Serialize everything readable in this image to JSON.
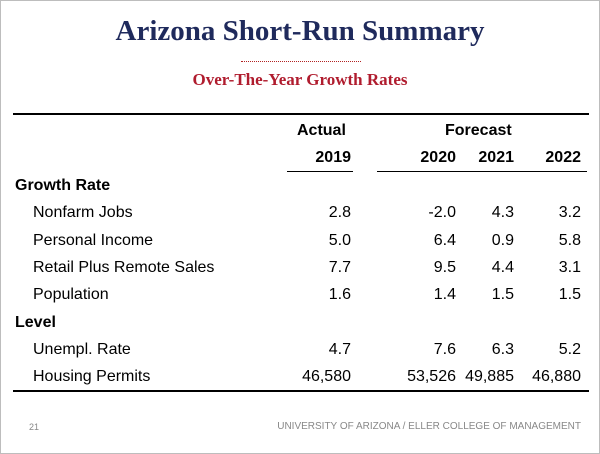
{
  "title": "Arizona Short-Run Summary",
  "subtitle": "Over-The-Year Growth Rates",
  "table": {
    "column_groups": [
      "Actual",
      "Forecast"
    ],
    "columns": [
      "2019",
      "2020",
      "2021",
      "2022"
    ],
    "sections": [
      {
        "label": "Growth Rate",
        "rows": [
          {
            "label": "Nonfarm Jobs",
            "values": [
              "2.8",
              "-2.0",
              "4.3",
              "3.2"
            ]
          },
          {
            "label": "Personal Income",
            "values": [
              "5.0",
              "6.4",
              "0.9",
              "5.8"
            ]
          },
          {
            "label": "Retail Plus Remote Sales",
            "values": [
              "7.7",
              "9.5",
              "4.4",
              "3.1"
            ]
          },
          {
            "label": "Population",
            "values": [
              "1.6",
              "1.4",
              "1.5",
              "1.5"
            ]
          }
        ]
      },
      {
        "label": "Level",
        "rows": [
          {
            "label": "Unempl. Rate",
            "values": [
              "4.7",
              "7.6",
              "6.3",
              "5.2"
            ]
          },
          {
            "label": "Housing Permits",
            "values": [
              "46,580",
              "53,526",
              "49,885",
              "46,880"
            ]
          }
        ]
      }
    ]
  },
  "footer": {
    "page": "21",
    "text": "UNIVERSITY OF ARIZONA / ELLER COLLEGE OF MANAGEMENT"
  }
}
